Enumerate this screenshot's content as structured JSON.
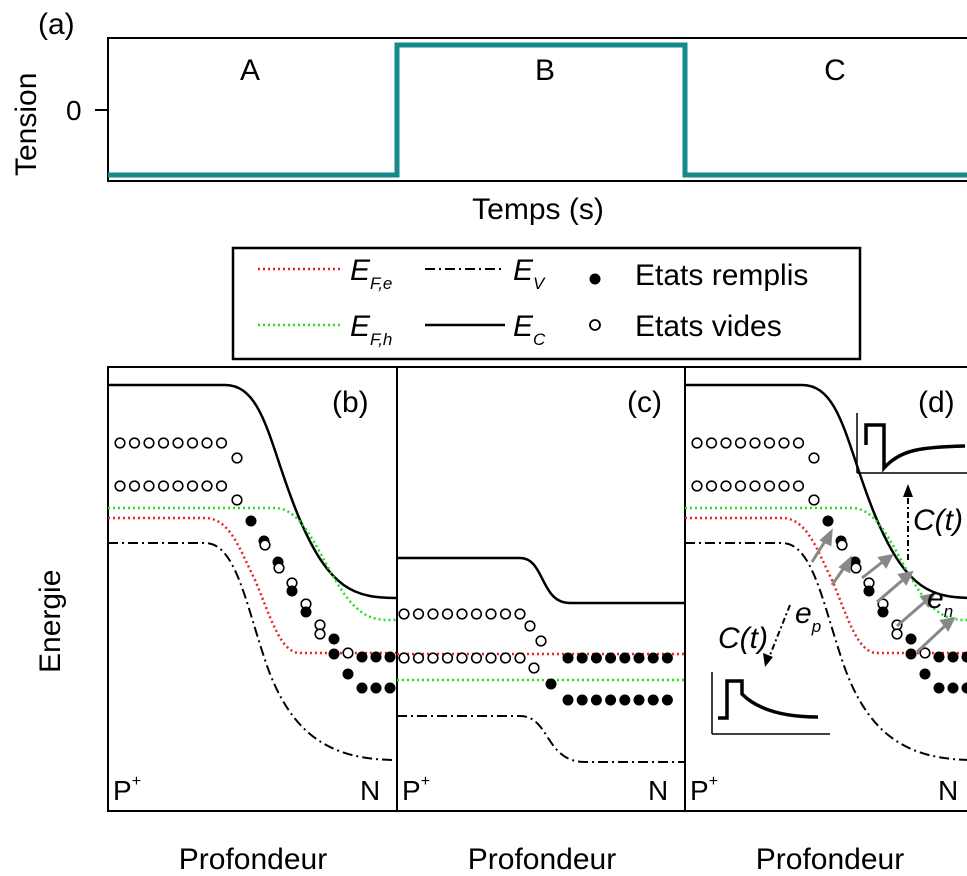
{
  "panel_a": {
    "tag": "(a)",
    "ylabel": "Tension",
    "ytick_zero": "0",
    "xlabel": "Temps (s)",
    "phases": [
      "A",
      "B",
      "C"
    ],
    "pulse_color": "#168a8a"
  },
  "legend": {
    "efe_main": "E",
    "efe_sub": "F,e",
    "efh_main": "E",
    "efh_sub": "F,h",
    "ev_main": "E",
    "ev_sub": "V",
    "ec_main": "E",
    "ec_sub": "C",
    "filled_label": "Etats remplis",
    "empty_label": "Etats vides"
  },
  "panels": [
    {
      "tag": "(b)",
      "left_label": "P",
      "left_sup": "+",
      "right_label": "N",
      "xlabel": "Profondeur"
    },
    {
      "tag": "(c)",
      "left_label": "P",
      "left_sup": "+",
      "right_label": "N",
      "xlabel": "Profondeur"
    },
    {
      "tag": "(d)",
      "left_label": "P",
      "left_sup": "+",
      "right_label": "N",
      "xlabel": "Profondeur"
    }
  ],
  "ylabel_energy": "Energie",
  "annotations": {
    "ct_left": "C(t)",
    "ct_right": "C(t)",
    "ep_main": "e",
    "ep_sub": "p",
    "en_main": "e",
    "en_sub": "n"
  },
  "colors": {
    "fermi_e": "#e8231f",
    "fermi_h": "#22dd22",
    "bands": "#000000",
    "arrows": "#888888"
  }
}
